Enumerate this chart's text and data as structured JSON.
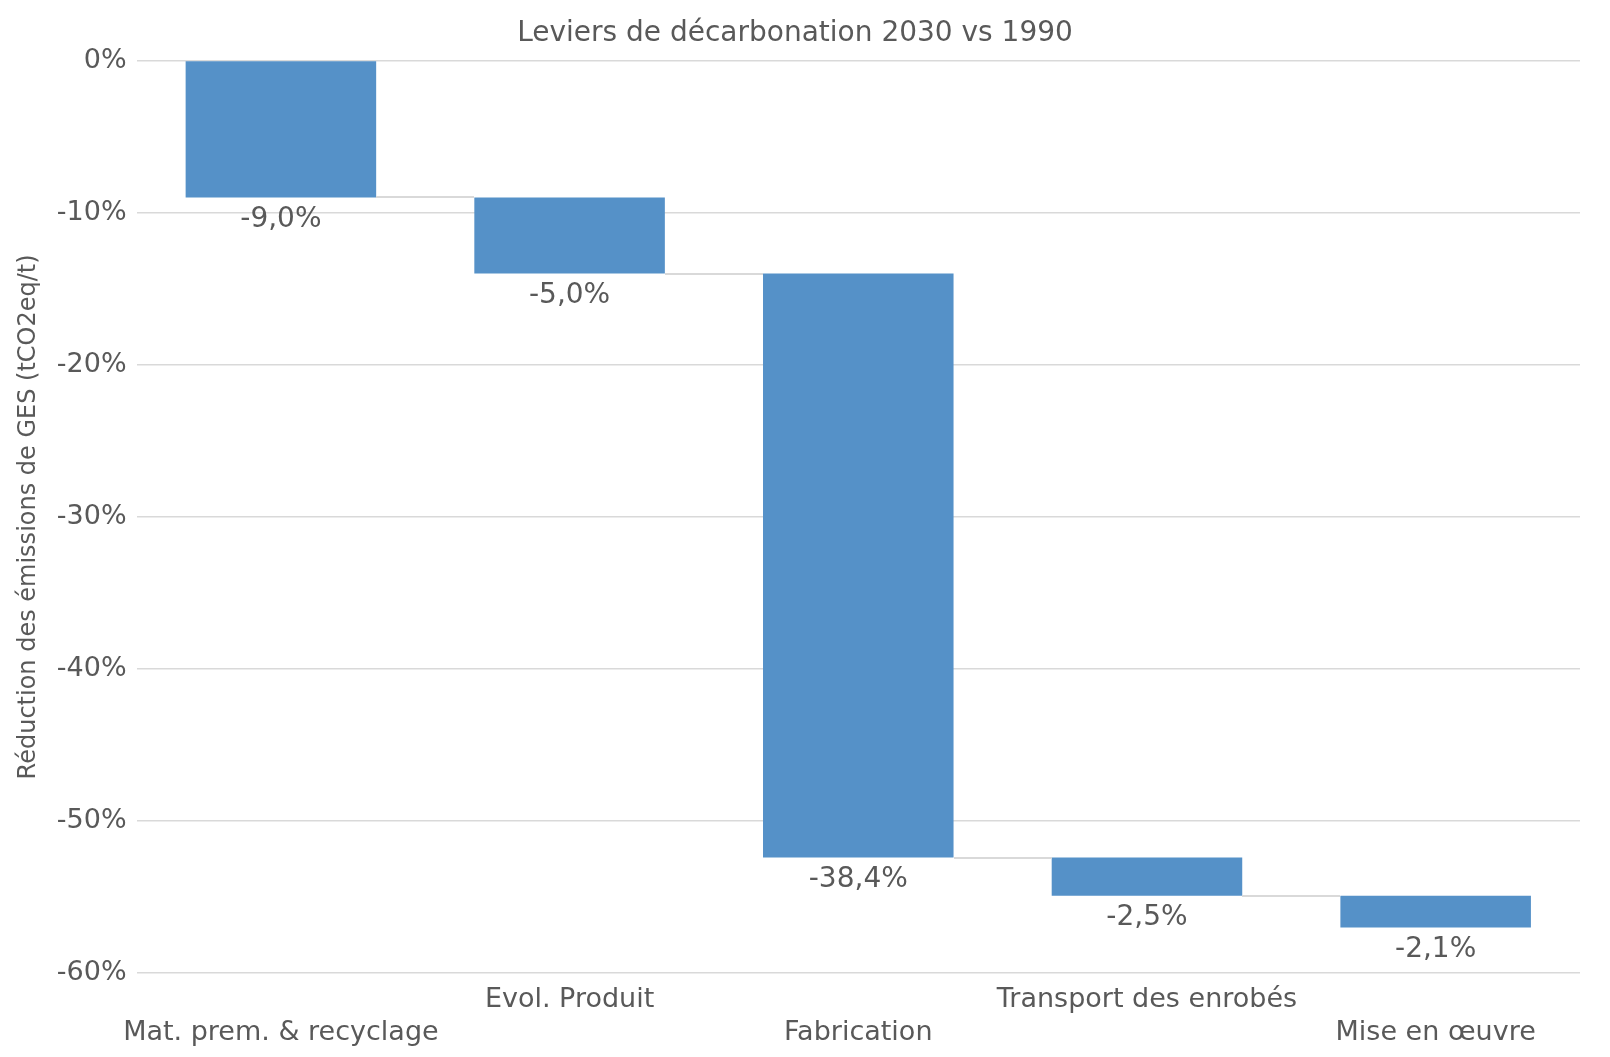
{
  "chart_data": {
    "type": "bar",
    "title": "Leviers de décarbonation 2030 vs 1990",
    "ylabel": "Réduction des émissions de GES (tCO2eq/t)",
    "categories": [
      "Mat. prem. & recyclage",
      "Evol. Produit",
      "Fabrication",
      "Transport des enrobés",
      "Mise en œuvre"
    ],
    "values": [
      -9.0,
      -5.0,
      -38.4,
      -2.5,
      -2.1
    ],
    "base": [
      0,
      -9.0,
      -14.0,
      -52.4,
      -54.9
    ],
    "value_labels": [
      "-9,0%",
      "-5,0%",
      "-38,4%",
      "-2,5%",
      "-2,1%"
    ],
    "color": "#5591c8",
    "ylim": [
      -60,
      0
    ],
    "yticks": [
      {
        "value": 0,
        "label": "0%"
      },
      {
        "value": -10,
        "label": "-10%"
      },
      {
        "value": -20,
        "label": "-20%"
      },
      {
        "value": -30,
        "label": "-30%"
      },
      {
        "value": -40,
        "label": "-40%"
      },
      {
        "value": -50,
        "label": "-50%"
      },
      {
        "value": -60,
        "label": "-60%"
      }
    ],
    "grid": "y",
    "legend": false
  }
}
